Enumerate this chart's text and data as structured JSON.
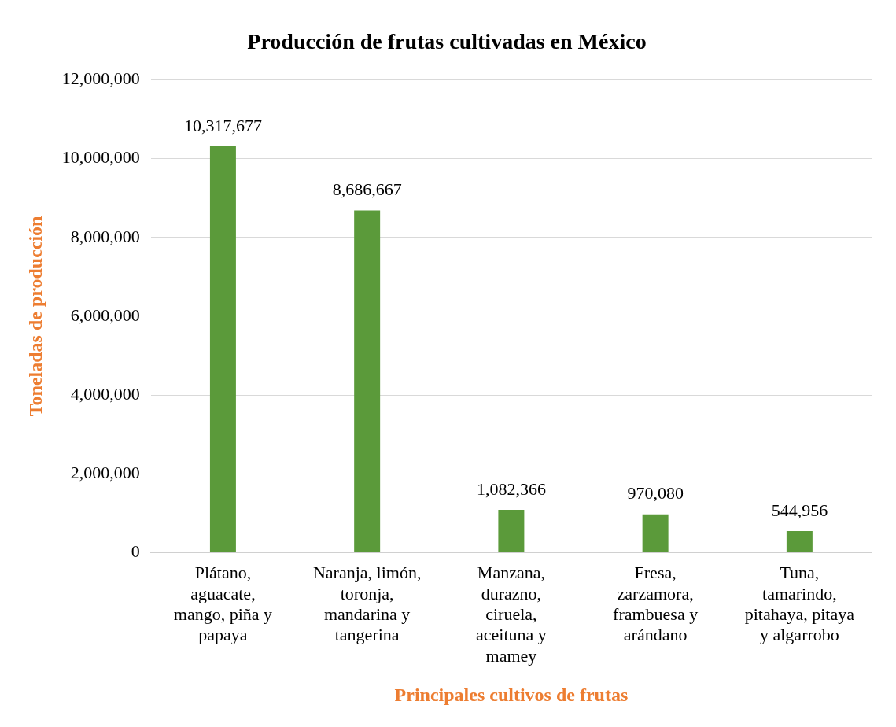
{
  "chart_data": {
    "type": "bar",
    "title": "Producción de frutas cultivadas en México",
    "xlabel": "Principales cultivos de frutas",
    "ylabel": "Toneladas de producción",
    "categories": [
      "Plátano, aguacate, mango, piña y papaya",
      "Naranja, limón, toronja, mandarina y tangerina",
      "Manzana, durazno, ciruela, aceituna y mamey",
      "Fresa, zarzamora, frambuesa y arándano",
      "Tuna, tamarindo, pitahaya, pitaya y algarrobo"
    ],
    "values": [
      10317677,
      8686667,
      1082366,
      970080,
      544956
    ],
    "color": "#5b9a3a",
    "ylim": [
      0,
      12000000
    ],
    "yticks": [
      {
        "value": 0,
        "label": "0"
      },
      {
        "value": 2000000,
        "label": "2,000,000"
      },
      {
        "value": 4000000,
        "label": "4,000,000"
      },
      {
        "value": 6000000,
        "label": "6,000,000"
      },
      {
        "value": 8000000,
        "label": "8,000,000"
      },
      {
        "value": 10000000,
        "label": "10,000,000"
      },
      {
        "value": 12000000,
        "label": "12,000,000"
      }
    ],
    "value_labels": [
      "10,317,677",
      "8,686,667",
      "1,082,366",
      "970,080",
      "544,956"
    ],
    "grid": "y",
    "legend": false
  }
}
